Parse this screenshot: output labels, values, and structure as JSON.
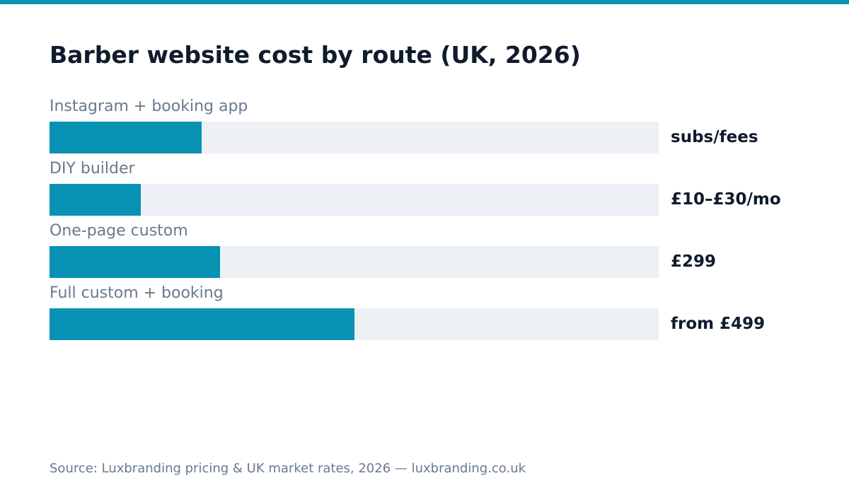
{
  "accent_color": "#0892b3",
  "track_color": "#edf1f5",
  "title_color": "#0f1b2d",
  "muted_color": "#697a8c",
  "chart_data": {
    "type": "bar",
    "orientation": "horizontal",
    "title": "Barber website cost by route (UK, 2026)",
    "categories": [
      "Instagram + booking app",
      "DIY builder",
      "One-page custom",
      "Full custom + booking"
    ],
    "values": [
      0.25,
      0.15,
      0.28,
      0.5
    ],
    "value_labels": [
      "subs/fees",
      "£10–£30/mo",
      "£299",
      "from £499"
    ],
    "xlim": [
      0,
      1
    ],
    "grid": false,
    "source": "Source: Luxbranding pricing & UK market rates, 2026 — luxbranding.co.uk"
  }
}
